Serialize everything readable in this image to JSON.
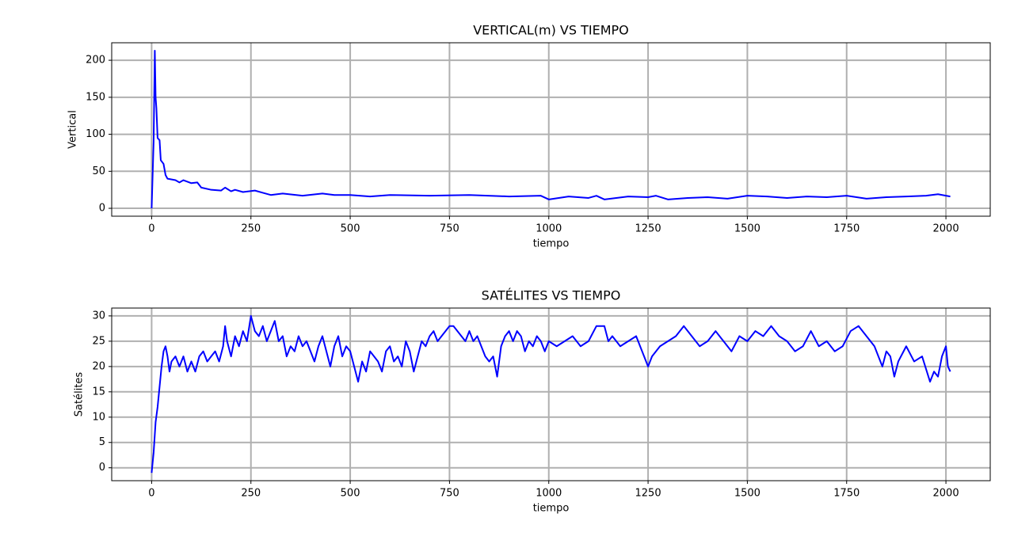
{
  "chart_data": [
    {
      "type": "line",
      "title": "VERTICAL(m) VS TIEMPO",
      "xlabel": "tiempo",
      "ylabel": "Vertical",
      "grid": true,
      "xlim": [
        -100.55,
        2111.55
      ],
      "ylim": [
        -10.65,
        223.65
      ],
      "xticks": [
        0,
        250,
        500,
        750,
        1000,
        1250,
        1500,
        1750,
        2000
      ],
      "yticks": [
        0,
        50,
        100,
        150,
        200
      ],
      "x": [
        0,
        5,
        8,
        10,
        12,
        15,
        20,
        23,
        30,
        35,
        40,
        60,
        70,
        80,
        100,
        115,
        125,
        150,
        175,
        185,
        200,
        210,
        230,
        260,
        280,
        300,
        330,
        380,
        430,
        460,
        500,
        550,
        600,
        700,
        800,
        900,
        980,
        1000,
        1050,
        1100,
        1120,
        1140,
        1200,
        1250,
        1270,
        1300,
        1350,
        1400,
        1450,
        1500,
        1550,
        1600,
        1650,
        1700,
        1750,
        1800,
        1850,
        1900,
        1950,
        1980,
        2000,
        2011
      ],
      "series": [
        {
          "name": "Vertical",
          "color": "#0000ff",
          "values": [
            0,
            90,
            213,
            150,
            135,
            95,
            92,
            65,
            60,
            45,
            40,
            38,
            35,
            38,
            34,
            35,
            28,
            25,
            24,
            28,
            23,
            25,
            22,
            24,
            21,
            18,
            20,
            17,
            20,
            18,
            18,
            16,
            18,
            17,
            18,
            16,
            17,
            12,
            16,
            14,
            17,
            12,
            16,
            15,
            17,
            12,
            14,
            15,
            13,
            17,
            16,
            14,
            16,
            15,
            17,
            13,
            15,
            16,
            17,
            19,
            17,
            16
          ]
        }
      ]
    },
    {
      "type": "line",
      "title": "SATÉLITES VS TIEMPO",
      "xlabel": "tiempo",
      "ylabel": "Satélites",
      "grid": true,
      "xlim": [
        -100.55,
        2111.55
      ],
      "ylim": [
        -2.55,
        31.55
      ],
      "xticks": [
        0,
        250,
        500,
        750,
        1000,
        1250,
        1500,
        1750,
        2000
      ],
      "yticks": [
        0,
        5,
        10,
        15,
        20,
        25,
        30
      ],
      "x": [
        0,
        5,
        10,
        15,
        20,
        25,
        30,
        35,
        40,
        45,
        50,
        60,
        70,
        80,
        90,
        100,
        110,
        120,
        130,
        140,
        150,
        160,
        170,
        180,
        185,
        190,
        200,
        210,
        220,
        230,
        240,
        250,
        260,
        270,
        280,
        290,
        300,
        310,
        320,
        330,
        340,
        350,
        360,
        370,
        380,
        390,
        400,
        410,
        420,
        430,
        440,
        450,
        460,
        470,
        480,
        490,
        500,
        510,
        520,
        530,
        540,
        550,
        560,
        570,
        580,
        590,
        600,
        610,
        620,
        630,
        640,
        650,
        660,
        670,
        680,
        690,
        700,
        710,
        720,
        730,
        740,
        750,
        760,
        770,
        780,
        790,
        800,
        810,
        820,
        830,
        840,
        850,
        860,
        870,
        880,
        890,
        900,
        910,
        920,
        930,
        940,
        950,
        960,
        970,
        980,
        990,
        1000,
        1020,
        1040,
        1060,
        1080,
        1100,
        1120,
        1140,
        1150,
        1160,
        1180,
        1200,
        1220,
        1240,
        1250,
        1260,
        1280,
        1300,
        1320,
        1340,
        1360,
        1380,
        1400,
        1420,
        1440,
        1460,
        1480,
        1500,
        1520,
        1540,
        1560,
        1580,
        1600,
        1620,
        1640,
        1660,
        1680,
        1700,
        1720,
        1740,
        1760,
        1780,
        1800,
        1820,
        1840,
        1850,
        1860,
        1870,
        1880,
        1900,
        1920,
        1940,
        1960,
        1970,
        1980,
        1990,
        2000,
        2005,
        2011
      ],
      "series": [
        {
          "name": "Satélites",
          "color": "#0000ff",
          "values": [
            -1,
            3,
            9,
            12,
            16,
            20,
            23,
            24,
            22,
            19,
            21,
            22,
            20,
            22,
            19,
            21,
            19,
            22,
            23,
            21,
            22,
            23,
            21,
            24,
            28,
            25,
            22,
            26,
            24,
            27,
            25,
            30,
            27,
            26,
            28,
            25,
            27,
            29,
            25,
            26,
            22,
            24,
            23,
            26,
            24,
            25,
            23,
            21,
            24,
            26,
            23,
            20,
            24,
            26,
            22,
            24,
            23,
            20,
            17,
            21,
            19,
            23,
            22,
            21,
            19,
            23,
            24,
            21,
            22,
            20,
            25,
            23,
            19,
            22,
            25,
            24,
            26,
            27,
            25,
            26,
            27,
            28,
            28,
            27,
            26,
            25,
            27,
            25,
            26,
            24,
            22,
            21,
            22,
            18,
            24,
            26,
            27,
            25,
            27,
            26,
            23,
            25,
            24,
            26,
            25,
            23,
            25,
            24,
            25,
            26,
            24,
            25,
            28,
            28,
            25,
            26,
            24,
            25,
            26,
            22,
            20,
            22,
            24,
            25,
            26,
            28,
            26,
            24,
            25,
            27,
            25,
            23,
            26,
            25,
            27,
            26,
            28,
            26,
            25,
            23,
            24,
            27,
            24,
            25,
            23,
            24,
            27,
            28,
            26,
            24,
            20,
            23,
            22,
            18,
            21,
            24,
            21,
            22,
            17,
            19,
            18,
            22,
            24,
            20,
            19
          ]
        }
      ]
    }
  ]
}
